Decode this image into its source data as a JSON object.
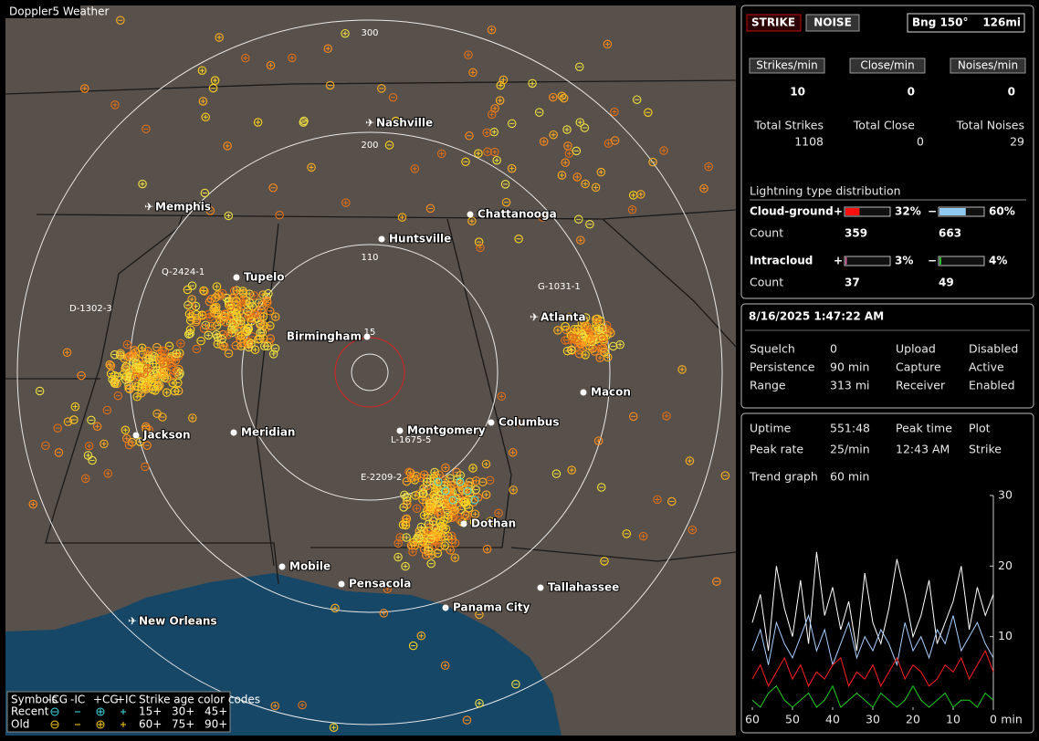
{
  "map": {
    "title": "Doppler5 Weather",
    "range_rings": [
      "300",
      "200",
      "110",
      "15"
    ],
    "cities": [
      "Nashville",
      "Memphis",
      "Chattanooga",
      "Huntsville",
      "Tupelo",
      "Atlanta",
      "Birmingham",
      "Macon",
      "Jackson",
      "Meridian",
      "Montgomery",
      "Columbus",
      "Dothan",
      "Mobile",
      "Pensacola",
      "Tallahassee",
      "Panama City",
      "New Orleans"
    ],
    "storm_ids": [
      "Q-2424-1",
      "D-1302-3",
      "G-1031-1",
      "L-1675-5",
      "E-2209-2"
    ],
    "legend": {
      "symbols": "Symbols",
      "cols": [
        "-CG",
        "-IC",
        "+CG",
        "+IC"
      ],
      "age_title": "Strike age color codes",
      "rows": [
        {
          "label": "Recent",
          "ages": [
            "15+",
            "30+",
            "45+"
          ]
        },
        {
          "label": "Old",
          "ages": [
            "60+",
            "75+",
            "90+"
          ]
        }
      ]
    }
  },
  "status": {
    "strike": "STRIKE",
    "noise": "NOISE",
    "bearing": "Bng 150°",
    "distance": "126mi"
  },
  "rates": [
    {
      "label": "Strikes/min",
      "value": 10,
      "total_label": "Total Strikes",
      "total": 1108
    },
    {
      "label": "Close/min",
      "value": 0,
      "total_label": "Total Close",
      "total": 0
    },
    {
      "label": "Noises/min",
      "value": 0,
      "total_label": "Total Noises",
      "total": 29
    }
  ],
  "distribution": {
    "title": "Lightning type distribution",
    "count_label": "Count",
    "rows": [
      {
        "label": "Cloud-ground",
        "pos": {
          "sign": "+",
          "value": 32,
          "label": "32%",
          "count": 359
        },
        "neg": {
          "sign": "−",
          "value": 60,
          "label": "60%",
          "count": 663
        }
      },
      {
        "label": "Intracloud",
        "pos": {
          "sign": "+",
          "value": 3,
          "label": "3%",
          "count": 37
        },
        "neg": {
          "sign": "−",
          "value": 4,
          "label": "4%",
          "count": 49
        }
      }
    ]
  },
  "clock": "8/16/2025 1:47:22 AM",
  "settings": [
    [
      "Squelch",
      "0",
      "Upload",
      "Disabled"
    ],
    [
      "Persistence",
      "90 min",
      "Capture",
      "Active"
    ],
    [
      "Range",
      "313 mi",
      "Receiver",
      "Enabled"
    ]
  ],
  "stats": [
    [
      "Uptime",
      "551:48",
      "Peak time",
      "Plot"
    ],
    [
      "Peak rate",
      "25/min",
      "12:43 AM",
      "Strike"
    ]
  ],
  "trend": {
    "label": "Trend graph",
    "value": "60 min"
  },
  "chart_data": {
    "type": "line",
    "x_unit": "min",
    "x": [
      60,
      58,
      56,
      54,
      52,
      50,
      48,
      46,
      44,
      42,
      40,
      38,
      36,
      34,
      32,
      30,
      28,
      26,
      24,
      22,
      20,
      18,
      16,
      14,
      12,
      10,
      8,
      6,
      4,
      2,
      0
    ],
    "xlim": [
      60,
      0
    ],
    "ylim": [
      0,
      30
    ],
    "xticks": [
      60,
      50,
      40,
      30,
      20,
      10,
      0
    ],
    "yticks": [
      10,
      20,
      30
    ],
    "series": [
      {
        "color": "#ffffff",
        "values": [
          12,
          16,
          8,
          20,
          14,
          10,
          18,
          9,
          22,
          13,
          17,
          11,
          15,
          8,
          19,
          12,
          9,
          14,
          21,
          16,
          10,
          13,
          18,
          9,
          12,
          15,
          20,
          11,
          17,
          13,
          16
        ]
      },
      {
        "color": "#a8d0ff",
        "values": [
          8,
          11,
          6,
          12,
          9,
          7,
          10,
          13,
          8,
          11,
          6,
          9,
          12,
          7,
          10,
          8,
          11,
          9,
          6,
          12,
          8,
          10,
          7,
          11,
          9,
          13,
          8,
          10,
          12,
          9,
          7
        ]
      },
      {
        "color": "#ff2020",
        "values": [
          4,
          6,
          3,
          5,
          7,
          4,
          6,
          3,
          5,
          4,
          6,
          7,
          3,
          5,
          4,
          6,
          3,
          5,
          7,
          4,
          6,
          5,
          3,
          4,
          6,
          5,
          7,
          4,
          6,
          8,
          5
        ]
      },
      {
        "color": "#20d020",
        "values": [
          1,
          0,
          2,
          3,
          1,
          0,
          1,
          2,
          0,
          1,
          3,
          0,
          1,
          2,
          1,
          0,
          2,
          1,
          0,
          1,
          3,
          1,
          0,
          1,
          2,
          0,
          1,
          1,
          0,
          2,
          1
        ]
      }
    ]
  }
}
